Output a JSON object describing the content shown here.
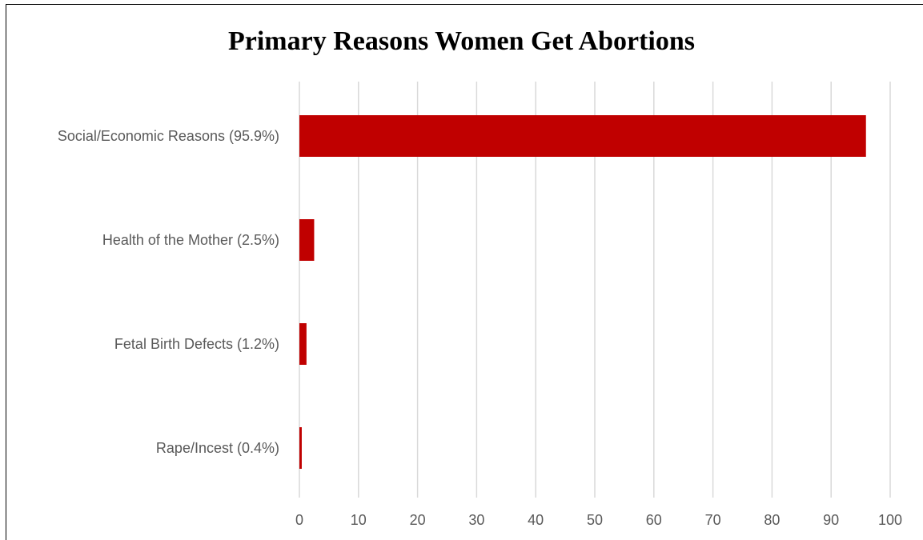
{
  "chart_data": {
    "type": "bar",
    "orientation": "horizontal",
    "title": "Primary Reasons Women Get Abortions",
    "categories": [
      "Social/Economic Reasons (95.9%)",
      "Health of the Mother (2.5%)",
      "Fetal Birth Defects (1.2%)",
      "Rape/Incest (0.4%)"
    ],
    "values": [
      95.9,
      2.5,
      1.2,
      0.4
    ],
    "xlim": [
      0,
      100
    ],
    "x_ticks": [
      0,
      10,
      20,
      30,
      40,
      50,
      60,
      70,
      80,
      90,
      100
    ],
    "grid": true,
    "legend": false,
    "bar_color": "#C00000",
    "grid_color": "#D9D9D9"
  }
}
